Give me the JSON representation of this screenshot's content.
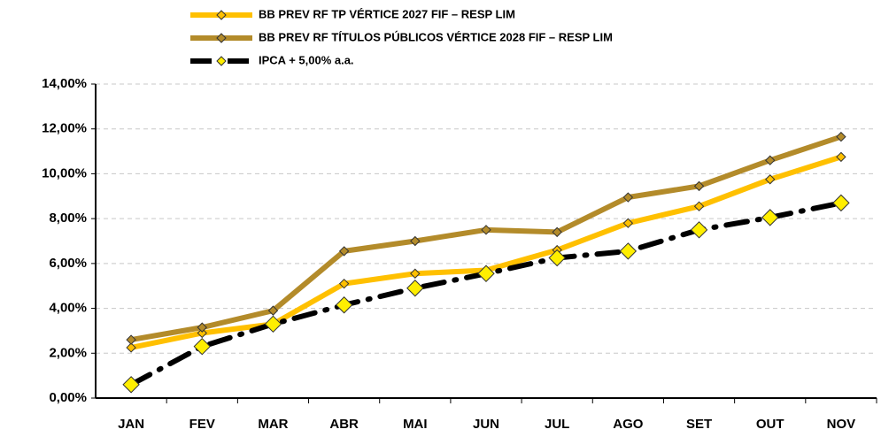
{
  "chart_data": {
    "type": "line",
    "categories": [
      "JAN",
      "FEV",
      "MAR",
      "ABR",
      "MAI",
      "JUN",
      "JUL",
      "AGO",
      "SET",
      "OUT",
      "NOV"
    ],
    "series": [
      {
        "name": "BB PREV RF TP VÉRTICE 2027 FIF – RESP LIM",
        "color": "#ffc000",
        "marker_color": "#ffc000",
        "line_style": "solid",
        "values": [
          2.25,
          2.9,
          3.3,
          5.1,
          5.55,
          5.7,
          6.6,
          7.8,
          8.55,
          9.75,
          10.75
        ]
      },
      {
        "name": "BB PREV RF TÍTULOS PÚBLICOS VÉRTICE 2028 FIF – RESP LIM",
        "color": "#b38b2a",
        "marker_color": "#b38b2a",
        "line_style": "solid",
        "values": [
          2.6,
          3.15,
          3.9,
          6.55,
          7.0,
          7.5,
          7.4,
          8.95,
          9.45,
          10.6,
          11.65
        ]
      },
      {
        "name": "IPCA + 5,00% a.a.",
        "color": "#000000",
        "marker_color": "#ffee00",
        "line_style": "dashdot",
        "values": [
          0.6,
          2.3,
          3.3,
          4.15,
          4.9,
          5.55,
          6.25,
          6.55,
          7.5,
          8.05,
          8.7
        ]
      }
    ],
    "ylim": [
      0,
      14
    ],
    "yticks": [
      {
        "value": 0,
        "label": "0,00%"
      },
      {
        "value": 2,
        "label": "2,00%"
      },
      {
        "value": 4,
        "label": "4,00%"
      },
      {
        "value": 6,
        "label": "6,00%"
      },
      {
        "value": 8,
        "label": "8,00%"
      },
      {
        "value": 10,
        "label": "10,00%"
      },
      {
        "value": 12,
        "label": "12,00%"
      },
      {
        "value": 14,
        "label": "14,00%"
      }
    ],
    "grid": true
  }
}
